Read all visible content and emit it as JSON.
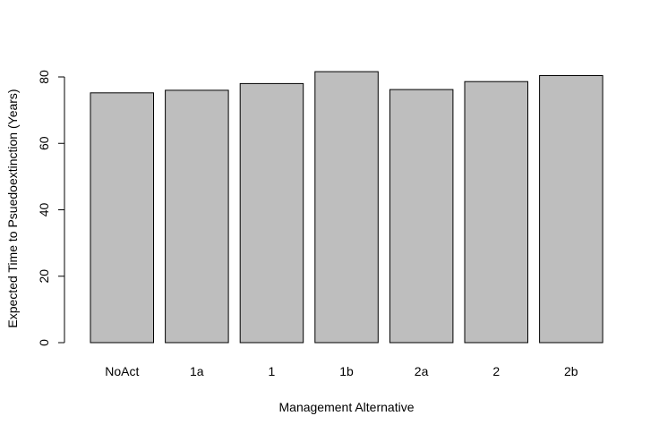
{
  "chart_data": {
    "type": "bar",
    "title": "",
    "xlabel": "Management Alternative",
    "ylabel": "Expected Time to Psuedoextinction (Years)",
    "categories": [
      "NoAct",
      "1a",
      "1",
      "1b",
      "2a",
      "2",
      "2b"
    ],
    "values": [
      75.2,
      76.0,
      78.0,
      81.6,
      76.2,
      78.6,
      80.4
    ],
    "ylim": [
      0,
      85
    ],
    "yticks": [
      0,
      20,
      40,
      60,
      80
    ],
    "bar_color": "#bebebe",
    "bar_stroke": "#000000",
    "grid": false,
    "legend": "none"
  }
}
